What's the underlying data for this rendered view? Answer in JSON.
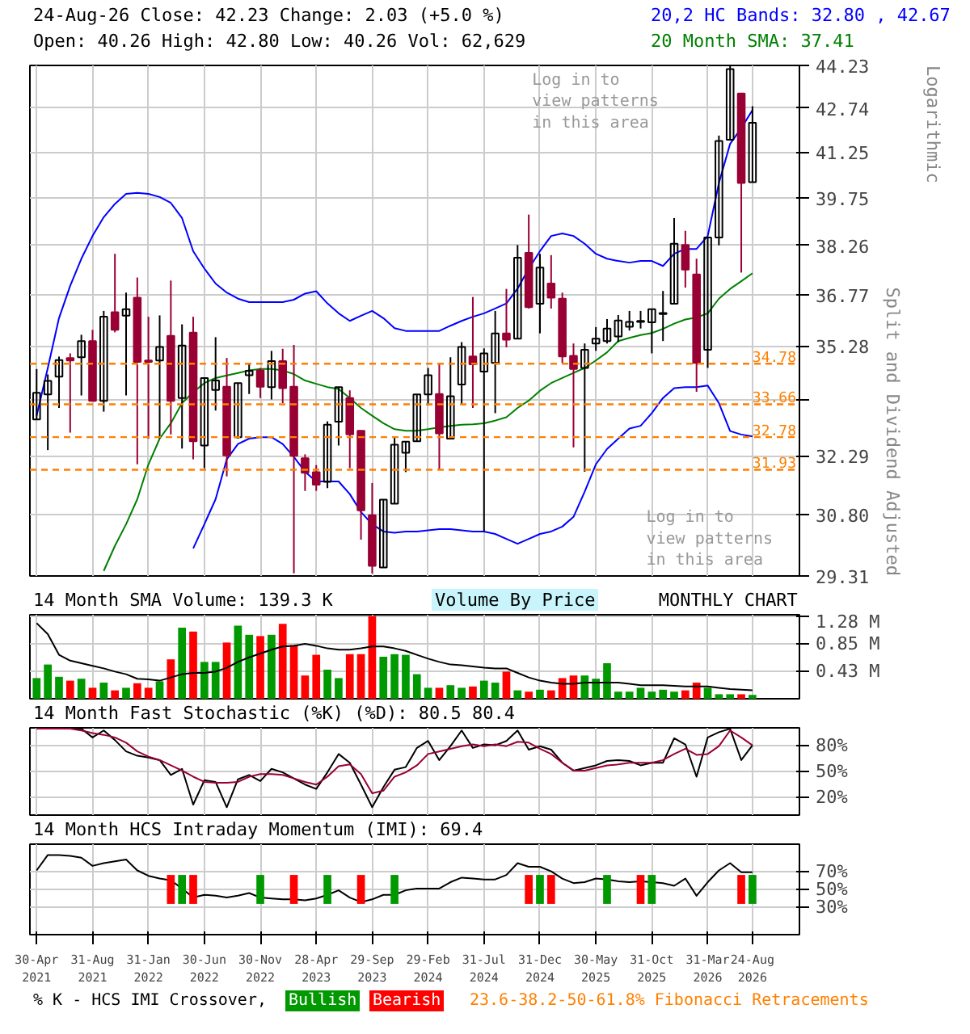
{
  "chart_data": [
    {
      "type": "candlestick",
      "title": "24-Aug-26   Close: 42.23   Change: 2.03 (+5.0 %)",
      "subtitle": "Open: 40.26   High: 42.80   Low: 40.26   Vol: 62,629",
      "categories": [
        "30-Apr\n2021",
        null,
        null,
        null,
        null,
        "31-Aug\n2021",
        null,
        null,
        null,
        null,
        "31-Jan\n2022",
        null,
        null,
        null,
        null,
        "30-Jun\n2022",
        null,
        null,
        null,
        null,
        "30-Nov\n2022",
        null,
        null,
        null,
        null,
        "28-Apr\n2023",
        null,
        null,
        null,
        null,
        "29-Sep\n2023",
        null,
        null,
        null,
        null,
        "29-Feb\n2024",
        null,
        null,
        null,
        null,
        "31-Jul\n2024",
        null,
        null,
        null,
        null,
        "31-Dec\n2024",
        null,
        null,
        null,
        null,
        "30-May\n2025",
        null,
        null,
        null,
        null,
        "31-Oct\n2025",
        null,
        null,
        null,
        null,
        "31-Mar\n2026",
        null,
        null,
        null,
        "24-Aug\n2026"
      ],
      "ohlc": [
        [
          33.25,
          34.63,
          33.25,
          33.97
        ],
        [
          33.93,
          34.48,
          32.44,
          34.3
        ],
        [
          34.42,
          34.98,
          33.56,
          34.88
        ],
        [
          34.94,
          35.07,
          32.9,
          34.87
        ],
        [
          34.96,
          35.6,
          33.9,
          35.42
        ],
        [
          35.42,
          35.74,
          33.75,
          33.75
        ],
        [
          33.75,
          36.29,
          33.46,
          36.12
        ],
        [
          36.25,
          38.0,
          35.67,
          35.74
        ],
        [
          36.15,
          36.83,
          33.9,
          36.34
        ],
        [
          36.68,
          37.28,
          32.07,
          34.83
        ],
        [
          34.87,
          36.12,
          32.74,
          34.83
        ],
        [
          34.87,
          36.16,
          32.74,
          35.25
        ],
        [
          35.57,
          37.19,
          32.85,
          33.75
        ],
        [
          33.83,
          35.9,
          32.48,
          35.29
        ],
        [
          35.66,
          36.12,
          32.2,
          32.67
        ],
        [
          32.56,
          34.38,
          31.97,
          34.38
        ],
        [
          34.05,
          35.53,
          33.49,
          34.31
        ],
        [
          34.14,
          34.94,
          31.76,
          32.3
        ],
        [
          32.78,
          34.24,
          32.74,
          34.24
        ],
        [
          34.46,
          34.76,
          33.94,
          34.58
        ],
        [
          34.59,
          34.66,
          33.83,
          34.14
        ],
        [
          34.13,
          35.14,
          33.79,
          34.85
        ],
        [
          34.85,
          35.2,
          33.69,
          34.1
        ],
        [
          34.14,
          35.31,
          29.37,
          32.29
        ],
        [
          32.23,
          32.33,
          31.39,
          31.85
        ],
        [
          31.87,
          32.05,
          31.39,
          31.55
        ],
        [
          31.62,
          33.2,
          31.46,
          33.11
        ],
        [
          33.19,
          34.13,
          32.56,
          34.13
        ],
        [
          33.83,
          34.04,
          31.97,
          32.85
        ],
        [
          32.95,
          32.95,
          30.18,
          30.9
        ],
        [
          30.78,
          31.59,
          29.37,
          29.55
        ],
        [
          29.51,
          31.17,
          29.51,
          31.17
        ],
        [
          31.07,
          32.78,
          31.07,
          32.58
        ],
        [
          32.37,
          32.66,
          31.87,
          32.66
        ],
        [
          32.67,
          33.93,
          32.67,
          33.93
        ],
        [
          33.93,
          34.66,
          33.63,
          34.46
        ],
        [
          33.94,
          34.77,
          31.92,
          32.88
        ],
        [
          32.74,
          34.96,
          32.74,
          33.88
        ],
        [
          34.2,
          35.39,
          33.67,
          35.25
        ],
        [
          34.98,
          36.7,
          33.56,
          34.76
        ],
        [
          34.56,
          35.21,
          30.38,
          35.07
        ],
        [
          34.8,
          36.29,
          33.42,
          35.64
        ],
        [
          35.64,
          36.94,
          35.24,
          35.46
        ],
        [
          35.49,
          38.27,
          35.49,
          37.88
        ],
        [
          38.03,
          39.22,
          36.36,
          36.4
        ],
        [
          36.5,
          38.0,
          35.64,
          37.58
        ],
        [
          37.1,
          37.96,
          36.36,
          36.68
        ],
        [
          36.65,
          36.83,
          34.8,
          34.98
        ],
        [
          35.0,
          35.35,
          32.51,
          34.63
        ],
        [
          34.66,
          35.35,
          31.88,
          35.17
        ],
        [
          35.35,
          35.82,
          35.14,
          35.49
        ],
        [
          35.42,
          36.05,
          35.35,
          35.78
        ],
        [
          35.55,
          36.17,
          35.39,
          36.01
        ],
        [
          35.83,
          36.29,
          35.72,
          35.97
        ],
        [
          35.97,
          36.29,
          35.78,
          36.0
        ],
        [
          35.96,
          36.34,
          35.07,
          36.34
        ],
        [
          36.2,
          36.88,
          35.42,
          36.23
        ],
        [
          36.5,
          39.11,
          36.5,
          38.31
        ],
        [
          38.27,
          38.71,
          36.98,
          37.52
        ],
        [
          37.37,
          37.85,
          34.0,
          34.8
        ],
        [
          35.17,
          38.5,
          34.66,
          38.5
        ],
        [
          38.5,
          41.8,
          38.26,
          41.62
        ],
        [
          41.66,
          44.23,
          41.66,
          44.1
        ],
        [
          43.24,
          43.24,
          37.43,
          40.23
        ],
        [
          40.26,
          42.8,
          40.26,
          42.23
        ]
      ],
      "series": [
        {
          "name": "20,2 HC Bands: 32.80 , 42.67",
          "type": "line",
          "color": "#0000ff",
          "values": [
            33.35,
            34.66,
            36.08,
            37.03,
            37.85,
            38.55,
            39.14,
            39.56,
            39.88,
            39.91,
            39.88,
            39.78,
            39.59,
            39.11,
            38.08,
            37.55,
            37.1,
            36.83,
            36.65,
            36.55,
            36.55,
            36.55,
            36.55,
            36.62,
            36.8,
            36.87,
            36.51,
            36.22,
            36.0,
            36.15,
            36.29,
            36.08,
            35.79,
            35.71,
            35.71,
            35.71,
            35.71,
            35.86,
            36.0,
            36.12,
            36.22,
            36.36,
            36.51,
            36.95,
            37.55,
            38.08,
            38.55,
            38.63,
            38.55,
            38.31,
            38.0,
            37.85,
            37.78,
            37.73,
            37.78,
            37.78,
            37.63,
            38.0,
            38.15,
            38.15,
            38.55,
            40.23,
            41.52,
            42.05,
            42.67
          ]
        },
        {
          "type": "line",
          "color": "#0000ff",
          "values": [
            null,
            null,
            null,
            null,
            null,
            null,
            null,
            null,
            null,
            null,
            null,
            null,
            null,
            null,
            29.97,
            30.56,
            31.18,
            32.2,
            32.6,
            32.74,
            32.78,
            32.78,
            32.6,
            32.26,
            31.88,
            31.63,
            31.63,
            31.63,
            31.31,
            30.86,
            30.56,
            30.38,
            30.35,
            30.38,
            30.38,
            30.41,
            30.44,
            30.44,
            30.41,
            30.38,
            30.38,
            30.32,
            30.2,
            30.08,
            30.2,
            30.32,
            30.38,
            30.5,
            30.74,
            31.37,
            32.07,
            32.47,
            32.74,
            33.01,
            33.08,
            33.42,
            33.83,
            34.1,
            34.13,
            34.13,
            34.17,
            33.69,
            32.94,
            32.85,
            32.8
          ]
        },
        {
          "name": "20 Month SMA: 37.41",
          "type": "line",
          "color": "#008000",
          "values": [
            null,
            null,
            null,
            null,
            null,
            null,
            29.43,
            30.03,
            30.56,
            31.18,
            32.07,
            32.74,
            33.15,
            33.69,
            33.99,
            34.24,
            34.38,
            34.45,
            34.52,
            34.59,
            34.63,
            34.63,
            34.59,
            34.49,
            34.31,
            34.22,
            34.13,
            34.08,
            33.83,
            33.56,
            33.35,
            33.15,
            32.99,
            32.95,
            32.95,
            32.99,
            33.04,
            33.08,
            33.11,
            33.12,
            33.15,
            33.22,
            33.31,
            33.56,
            33.76,
            34.03,
            34.24,
            34.38,
            34.52,
            34.66,
            34.87,
            35.1,
            35.42,
            35.51,
            35.59,
            35.65,
            35.77,
            35.92,
            36.04,
            36.1,
            36.22,
            36.65,
            36.94,
            37.17,
            37.41
          ]
        }
      ],
      "ref_lines": [
        {
          "axis": "y",
          "value": 34.78,
          "label": "34.78",
          "color": "#ff8000",
          "line_style": "dashed"
        },
        {
          "axis": "y",
          "value": 33.66,
          "label": "33.66",
          "color": "#ff8000",
          "line_style": "dashed"
        },
        {
          "axis": "y",
          "value": 32.78,
          "label": "32.78",
          "color": "#ff8000",
          "line_style": "dashed"
        },
        {
          "axis": "y",
          "value": 31.93,
          "label": "31.93",
          "color": "#ff8000",
          "line_style": "dashed"
        }
      ],
      "log": true,
      "ylim": [
        29.31,
        44.23
      ],
      "yticks": [
        29.31,
        {
          "value": 30.8,
          "label": "30.80"
        },
        32.29,
        {
          "value": 33.79,
          "label": null
        },
        35.28,
        36.77,
        38.26,
        39.75,
        41.25,
        42.74,
        44.23
      ],
      "grid": true,
      "tick_labels": "y",
      "annotations": [
        "Log in to view patterns in this area",
        "Log in to view patterns in this area",
        "Split and Dividend Adjusted",
        "Logarithmic"
      ]
    },
    {
      "type": "bar",
      "title": "14 Month SMA Volume: 139.3 K",
      "categories": [
        "30-Apr\n2021",
        null,
        null,
        null,
        null,
        "31-Aug\n2021",
        null,
        null,
        null,
        null,
        "31-Jan\n2022",
        null,
        null,
        null,
        null,
        "30-Jun\n2022",
        null,
        null,
        null,
        null,
        "30-Nov\n2022",
        null,
        null,
        null,
        null,
        "28-Apr\n2023",
        null,
        null,
        null,
        null,
        "29-Sep\n2023",
        null,
        null,
        null,
        null,
        "29-Feb\n2024",
        null,
        null,
        null,
        null,
        "31-Jul\n2024",
        null,
        null,
        null,
        null,
        "31-Dec\n2024",
        null,
        null,
        null,
        null,
        "30-May\n2025",
        null,
        null,
        null,
        null,
        "31-Oct\n2025",
        null,
        null,
        null,
        null,
        "31-Mar\n2026",
        null,
        null,
        null,
        "24-Aug\n2026"
      ],
      "values": [
        0.32,
        0.53,
        0.34,
        0.28,
        0.31,
        0.17,
        0.25,
        0.13,
        0.17,
        0.24,
        0.17,
        0.27,
        0.61,
        1.1,
        1.04,
        0.57,
        0.57,
        0.87,
        1.13,
        0.99,
        0.97,
        0.99,
        1.16,
        0.83,
        0.36,
        0.68,
        0.45,
        0.32,
        0.69,
        0.69,
        1.28,
        0.65,
        0.69,
        0.68,
        0.38,
        0.17,
        0.17,
        0.21,
        0.17,
        0.19,
        0.28,
        0.25,
        0.42,
        0.13,
        0.11,
        0.14,
        0.13,
        0.32,
        0.36,
        0.36,
        0.31,
        0.55,
        0.11,
        0.11,
        0.17,
        0.11,
        0.14,
        0.11,
        0.13,
        0.25,
        0.17,
        0.07,
        0.07,
        0.07,
        0.06
      ],
      "colors": [
        "#009900",
        "#009900",
        "#009900",
        "#ff0000",
        "#009900",
        "#ff0000",
        "#009900",
        "#ff0000",
        "#009900",
        "#ff0000",
        "#ff0000",
        "#009900",
        "#ff0000",
        "#009900",
        "#ff0000",
        "#009900",
        "#009900",
        "#ff0000",
        "#009900",
        "#009900",
        "#ff0000",
        "#009900",
        "#ff0000",
        "#ff0000",
        "#ff0000",
        "#ff0000",
        "#009900",
        "#009900",
        "#ff0000",
        "#ff0000",
        "#ff0000",
        "#009900",
        "#009900",
        "#009900",
        "#009900",
        "#009900",
        "#ff0000",
        "#009900",
        "#009900",
        "#ff0000",
        "#009900",
        "#009900",
        "#ff0000",
        "#009900",
        "#ff0000",
        "#009900",
        "#ff0000",
        "#ff0000",
        "#ff0000",
        "#009900",
        "#009900",
        "#009900",
        "#009900",
        "#009900",
        "#009900",
        "#009900",
        "#009900",
        "#009900",
        "#ff0000",
        "#ff0000",
        "#009900",
        "#009900",
        "#009900",
        "#ff0000",
        "#009900"
      ],
      "series": [
        {
          "type": "line",
          "color": "#000000",
          "values": [
            1.17,
            1.0,
            0.68,
            0.59,
            0.55,
            0.51,
            0.47,
            0.42,
            0.38,
            0.31,
            0.3,
            0.28,
            0.33,
            0.38,
            0.4,
            0.4,
            0.42,
            0.48,
            0.57,
            0.64,
            0.7,
            0.76,
            0.81,
            0.82,
            0.85,
            0.82,
            0.78,
            0.76,
            0.76,
            0.78,
            0.81,
            0.81,
            0.78,
            0.74,
            0.68,
            0.62,
            0.57,
            0.53,
            0.52,
            0.5,
            0.48,
            0.47,
            0.47,
            0.4,
            0.33,
            0.28,
            0.25,
            0.23,
            0.23,
            0.25,
            0.25,
            0.25,
            0.25,
            0.23,
            0.21,
            0.21,
            0.21,
            0.2,
            0.19,
            0.19,
            0.19,
            0.17,
            0.15,
            0.14,
            0.13
          ]
        }
      ],
      "ylim": [
        0,
        1.3
      ],
      "yticks": [
        {
          "value": 0.43,
          "label": "0.43 M"
        },
        {
          "value": 0.85,
          "label": "0.85 M"
        },
        {
          "value": 1.28,
          "label": "1.28 M"
        }
      ],
      "grid": true,
      "tick_labels": "y",
      "annotations": [
        "Volume By Price",
        "MONTHLY CHART"
      ]
    },
    {
      "type": "line",
      "title": "14 Month Fast Stochastic (%K) (%D): 80.5  80.4",
      "categories": [
        "30-Apr\n2021",
        null,
        null,
        null,
        null,
        "31-Aug\n2021",
        null,
        null,
        null,
        null,
        "31-Jan\n2022",
        null,
        null,
        null,
        null,
        "30-Jun\n2022",
        null,
        null,
        null,
        null,
        "30-Nov\n2022",
        null,
        null,
        null,
        null,
        "28-Apr\n2023",
        null,
        null,
        null,
        null,
        "29-Sep\n2023",
        null,
        null,
        null,
        null,
        "29-Feb\n2024",
        null,
        null,
        null,
        null,
        "31-Jul\n2024",
        null,
        null,
        null,
        null,
        "31-Dec\n2024",
        null,
        null,
        null,
        null,
        "30-May\n2025",
        null,
        null,
        null,
        null,
        "31-Oct\n2025",
        null,
        null,
        null,
        null,
        "31-Mar\n2026",
        null,
        null,
        null,
        "24-Aug\n2026"
      ],
      "series": [
        {
          "color": "#000000",
          "values": [
            99,
            99,
            99,
            99,
            99,
            89,
            97,
            86,
            73,
            68,
            66,
            63,
            46,
            53,
            12,
            40,
            38,
            9,
            41,
            46,
            39,
            53,
            49,
            42,
            35,
            30,
            49,
            70,
            60,
            35,
            9,
            32,
            52,
            55,
            77,
            85,
            63,
            79,
            97,
            77,
            81,
            80,
            85,
            97,
            75,
            79,
            75,
            60,
            51,
            54,
            57,
            62,
            63,
            62,
            57,
            60,
            60,
            88,
            81,
            44,
            89,
            95,
            99,
            63,
            80
          ]
        },
        {
          "color": "#990033",
          "values": [
            99,
            99,
            99,
            99,
            97,
            94,
            92,
            89,
            83,
            73,
            67,
            63,
            57,
            51,
            44,
            38,
            37,
            37,
            38,
            44,
            47,
            47,
            46,
            42,
            38,
            35,
            44,
            56,
            58,
            47,
            25,
            28,
            44,
            49,
            57,
            70,
            73,
            76,
            79,
            81,
            79,
            81,
            79,
            84,
            83,
            76,
            70,
            60,
            51,
            51,
            54,
            57,
            58,
            60,
            60,
            60,
            63,
            70,
            76,
            69,
            70,
            79,
            97,
            89,
            80
          ]
        }
      ],
      "ylim": [
        0,
        100
      ],
      "yticks": [
        {
          "value": 20,
          "label": "20%"
        },
        {
          "value": 50,
          "label": "50%"
        },
        {
          "value": 80,
          "label": "80%"
        }
      ],
      "grid": true,
      "tick_labels": "y"
    },
    {
      "type": "line",
      "title": "14 Month HCS Intraday Momentum (IMI): 69.4",
      "categories": [
        "30-Apr\n2021",
        null,
        null,
        null,
        null,
        "31-Aug\n2021",
        null,
        null,
        null,
        null,
        "31-Jan\n2022",
        null,
        null,
        null,
        null,
        "30-Jun\n2022",
        null,
        null,
        null,
        null,
        "30-Nov\n2022",
        null,
        null,
        null,
        null,
        "28-Apr\n2023",
        null,
        null,
        null,
        null,
        "29-Sep\n2023",
        null,
        null,
        null,
        null,
        "29-Feb\n2024",
        null,
        null,
        null,
        null,
        "31-Jul\n2024",
        null,
        null,
        null,
        null,
        "31-Dec\n2024",
        null,
        null,
        null,
        null,
        "30-May\n2025",
        null,
        null,
        null,
        null,
        "31-Oct\n2025",
        null,
        null,
        null,
        null,
        "31-Mar\n2026",
        null,
        null,
        null,
        "24-Aug\n2026"
      ],
      "series": [
        {
          "color": "#000000",
          "values": [
            71,
            88,
            88,
            87,
            85,
            76,
            79,
            81,
            83,
            71,
            65,
            62,
            60,
            51,
            41,
            44,
            43,
            41,
            43,
            46,
            41,
            40,
            39,
            39,
            38,
            40,
            44,
            49,
            41,
            36,
            39,
            44,
            44,
            49,
            51,
            51,
            51,
            58,
            63,
            62,
            61,
            61,
            66,
            79,
            75,
            75,
            70,
            62,
            57,
            58,
            62,
            61,
            59,
            58,
            59,
            58,
            57,
            54,
            62,
            43,
            58,
            71,
            79,
            69,
            69
          ]
        },
        {
          "name": "Bullish",
          "type": "bar",
          "color": "#009900",
          "base": [
            null,
            null,
            null,
            null,
            null,
            null,
            null,
            null,
            null,
            null,
            null,
            null,
            null,
            34,
            null,
            null,
            null,
            null,
            null,
            null,
            34,
            null,
            null,
            null,
            null,
            null,
            34,
            null,
            null,
            null,
            null,
            null,
            34,
            null,
            null,
            null,
            null,
            null,
            null,
            null,
            null,
            null,
            null,
            null,
            null,
            34,
            null,
            null,
            null,
            null,
            null,
            34,
            null,
            null,
            null,
            34,
            null,
            null,
            null,
            null,
            null,
            null,
            null,
            null,
            34
          ],
          "values": [
            null,
            null,
            null,
            null,
            null,
            null,
            null,
            null,
            null,
            null,
            null,
            null,
            null,
            32,
            null,
            null,
            null,
            null,
            null,
            null,
            32,
            null,
            null,
            null,
            null,
            null,
            32,
            null,
            null,
            null,
            null,
            null,
            32,
            null,
            null,
            null,
            null,
            null,
            null,
            null,
            null,
            null,
            null,
            null,
            null,
            32,
            null,
            null,
            null,
            null,
            null,
            32,
            null,
            null,
            null,
            32,
            null,
            null,
            null,
            null,
            null,
            null,
            null,
            null,
            32
          ]
        },
        {
          "name": "Bearish",
          "type": "bar",
          "color": "#ff0000",
          "base": [
            null,
            null,
            null,
            null,
            null,
            null,
            null,
            null,
            null,
            null,
            null,
            null,
            34,
            null,
            34,
            null,
            null,
            null,
            null,
            null,
            null,
            null,
            null,
            34,
            null,
            null,
            null,
            null,
            null,
            34,
            null,
            null,
            null,
            null,
            null,
            null,
            null,
            null,
            null,
            null,
            null,
            null,
            null,
            null,
            34,
            null,
            34,
            null,
            null,
            null,
            null,
            null,
            null,
            null,
            34,
            null,
            null,
            null,
            null,
            null,
            null,
            null,
            null,
            34,
            null
          ],
          "values": [
            null,
            null,
            null,
            null,
            null,
            null,
            null,
            null,
            null,
            null,
            null,
            null,
            32,
            null,
            32,
            null,
            null,
            null,
            null,
            null,
            null,
            null,
            null,
            32,
            null,
            null,
            null,
            null,
            null,
            32,
            null,
            null,
            null,
            null,
            null,
            null,
            null,
            null,
            null,
            null,
            null,
            null,
            null,
            null,
            32,
            null,
            32,
            null,
            null,
            null,
            null,
            null,
            null,
            null,
            32,
            null,
            null,
            null,
            null,
            null,
            null,
            null,
            null,
            32,
            null
          ]
        }
      ],
      "ylim": [
        0,
        100
      ],
      "yticks": [
        {
          "value": 30,
          "label": "30%"
        },
        {
          "value": 50,
          "label": "50%"
        },
        {
          "value": 70,
          "label": "70%"
        }
      ],
      "grid": true,
      "legend": "bottom",
      "annotations": [
        "% K - HCS IMI Crossover,",
        "23.6-38.2-50-61.8% Fibonacci Retracements"
      ]
    }
  ]
}
